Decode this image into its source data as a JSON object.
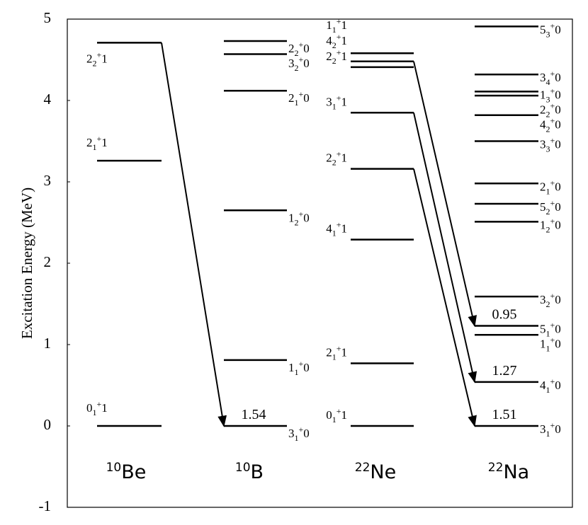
{
  "chart_data": {
    "type": "level-scheme",
    "y_label": "Excitation Energy (MeV)",
    "ylim": [
      -1,
      5
    ],
    "yticks": [
      -1,
      0,
      1,
      2,
      3,
      4,
      5
    ],
    "color": "#000000",
    "nuclei": [
      {
        "name": {
          "mass": "10",
          "element": "Be"
        },
        "levels": [
          {
            "energy": 0,
            "label": {
              "spin": "0",
              "index": "1",
              "parity": "+",
              "isospin": "1"
            }
          },
          {
            "energy": 3.26,
            "label": {
              "spin": "2",
              "index": "1",
              "parity": "+",
              "isospin": "1"
            }
          },
          {
            "energy": 4.71,
            "label": {
              "spin": "2",
              "index": "2",
              "parity": "+",
              "isospin": "1"
            }
          }
        ]
      },
      {
        "name": {
          "mass": "10",
          "element": "B"
        },
        "levels": [
          {
            "energy": 0,
            "label": {
              "spin": "3",
              "index": "1",
              "parity": "+",
              "isospin": "0"
            }
          },
          {
            "energy": 0.81,
            "label": {
              "spin": "1",
              "index": "1",
              "parity": "+",
              "isospin": "0"
            }
          },
          {
            "energy": 2.65,
            "label": {
              "spin": "1",
              "index": "2",
              "parity": "+",
              "isospin": "0"
            }
          },
          {
            "energy": 4.12,
            "label": {
              "spin": "2",
              "index": "1",
              "parity": "+",
              "isospin": "0"
            }
          },
          {
            "energy": 4.57,
            "label": {
              "spin": "3",
              "index": "2",
              "parity": "+",
              "isospin": "0"
            }
          },
          {
            "energy": 4.73,
            "label": {
              "spin": "2",
              "index": "2",
              "parity": "+",
              "isospin": "0"
            }
          }
        ]
      },
      {
        "name": {
          "mass": "22",
          "element": "Ne"
        },
        "levels": [
          {
            "energy": 0,
            "label": {
              "spin": "0",
              "index": "1",
              "parity": "+",
              "isospin": "1"
            }
          },
          {
            "energy": 0.77,
            "label": {
              "spin": "2",
              "index": "1",
              "parity": "+",
              "isospin": "1"
            }
          },
          {
            "energy": 2.29,
            "label": {
              "spin": "4",
              "index": "1",
              "parity": "+",
              "isospin": "1"
            }
          },
          {
            "energy": 3.16,
            "label": {
              "spin": "2",
              "index": "2",
              "parity": "+",
              "isospin": "1"
            }
          },
          {
            "energy": 3.85,
            "label": {
              "spin": "3",
              "index": "1",
              "parity": "+",
              "isospin": "1"
            }
          },
          {
            "energy": 4.41,
            "label": {
              "spin": "2",
              "index": "2",
              "parity": "+",
              "isospin": "1"
            }
          },
          {
            "energy": 4.48,
            "label": {
              "spin": "4",
              "index": "2",
              "parity": "+",
              "isospin": "1"
            }
          },
          {
            "energy": 4.58,
            "label": {
              "spin": "1",
              "index": "1",
              "parity": "+",
              "isospin": "1"
            }
          }
        ]
      },
      {
        "name": {
          "mass": "22",
          "element": "Na"
        },
        "levels": [
          {
            "energy": 0,
            "label": {
              "spin": "3",
              "index": "1",
              "parity": "+",
              "isospin": "0"
            }
          },
          {
            "energy": 0.54,
            "label": {
              "spin": "4",
              "index": "1",
              "parity": "+",
              "isospin": "0"
            }
          },
          {
            "energy": 1.12,
            "label": {
              "spin": "1",
              "index": "1",
              "parity": "+",
              "isospin": "0"
            }
          },
          {
            "energy": 1.23,
            "label": {
              "spin": "5",
              "index": "1",
              "parity": "+",
              "isospin": "0"
            }
          },
          {
            "energy": 1.59,
            "label": {
              "spin": "3",
              "index": "2",
              "parity": "+",
              "isospin": "0"
            }
          },
          {
            "energy": 2.51,
            "label": {
              "spin": "1",
              "index": "2",
              "parity": "+",
              "isospin": "0"
            }
          },
          {
            "energy": 2.73,
            "label": {
              "spin": "5",
              "index": "2",
              "parity": "+",
              "isospin": "0"
            }
          },
          {
            "energy": 2.98,
            "label": {
              "spin": "2",
              "index": "1",
              "parity": "+",
              "isospin": "0"
            }
          },
          {
            "energy": 3.5,
            "label": {
              "spin": "3",
              "index": "3",
              "parity": "+",
              "isospin": "0"
            }
          },
          {
            "energy": 3.82,
            "label": {
              "spin": "4",
              "index": "2",
              "parity": "+",
              "isospin": "0"
            }
          },
          {
            "energy": 4.06,
            "label": {
              "spin": "2",
              "index": "2",
              "parity": "+",
              "isospin": "0"
            }
          },
          {
            "energy": 4.11,
            "label": {
              "spin": "1",
              "index": "3",
              "parity": "+",
              "isospin": "0"
            }
          },
          {
            "energy": 4.32,
            "label": {
              "spin": "3",
              "index": "4",
              "parity": "+",
              "isospin": "0"
            }
          },
          {
            "energy": 4.91,
            "label": {
              "spin": "5",
              "index": "3",
              "parity": "+",
              "isospin": "0"
            }
          }
        ]
      }
    ],
    "arrows": [
      {
        "from": [
          0,
          2
        ],
        "to": [
          1,
          0
        ],
        "value": 1.54
      },
      {
        "from": [
          2,
          6
        ],
        "to": [
          3,
          3
        ],
        "value": 0.95
      },
      {
        "from": [
          2,
          4
        ],
        "to": [
          3,
          1
        ],
        "value": 1.27
      },
      {
        "from": [
          2,
          3
        ],
        "to": [
          3,
          0
        ],
        "value": 1.51
      }
    ]
  }
}
